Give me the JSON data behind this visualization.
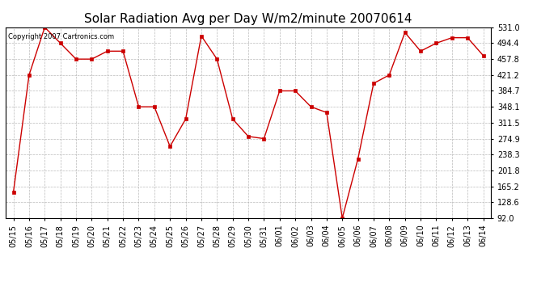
{
  "title": "Solar Radiation Avg per Day W/m2/minute 20070614",
  "copyright": "Copyright 2007 Cartronics.com",
  "labels": [
    "05/15",
    "05/16",
    "05/17",
    "05/18",
    "05/19",
    "05/20",
    "05/21",
    "05/22",
    "05/23",
    "05/24",
    "05/25",
    "05/26",
    "05/27",
    "05/28",
    "05/29",
    "05/30",
    "05/31",
    "06/01",
    "06/02",
    "06/03",
    "06/04",
    "06/05",
    "06/06",
    "06/07",
    "06/08",
    "06/09",
    "06/10",
    "06/11",
    "06/12",
    "06/13",
    "06/14"
  ],
  "values": [
    152.0,
    421.2,
    531.0,
    494.4,
    457.8,
    457.8,
    476.1,
    476.1,
    348.1,
    348.1,
    257.0,
    320.0,
    511.0,
    457.8,
    320.0,
    280.0,
    274.9,
    384.7,
    384.7,
    348.1,
    335.0,
    92.0,
    228.3,
    402.0,
    421.2,
    519.0,
    476.1,
    494.4,
    507.0,
    507.0,
    466.0
  ],
  "line_color": "#cc0000",
  "marker": "s",
  "marker_size": 2.5,
  "bg_color": "#ffffff",
  "plot_bg_color": "#ffffff",
  "grid_color": "#aaaaaa",
  "title_fontsize": 11,
  "ymin": 92.0,
  "ymax": 531.0,
  "yticks": [
    92.0,
    128.6,
    165.2,
    201.8,
    238.3,
    274.9,
    311.5,
    348.1,
    384.7,
    421.2,
    457.8,
    494.4,
    531.0
  ],
  "tick_fontsize": 7,
  "copyright_fontsize": 6
}
